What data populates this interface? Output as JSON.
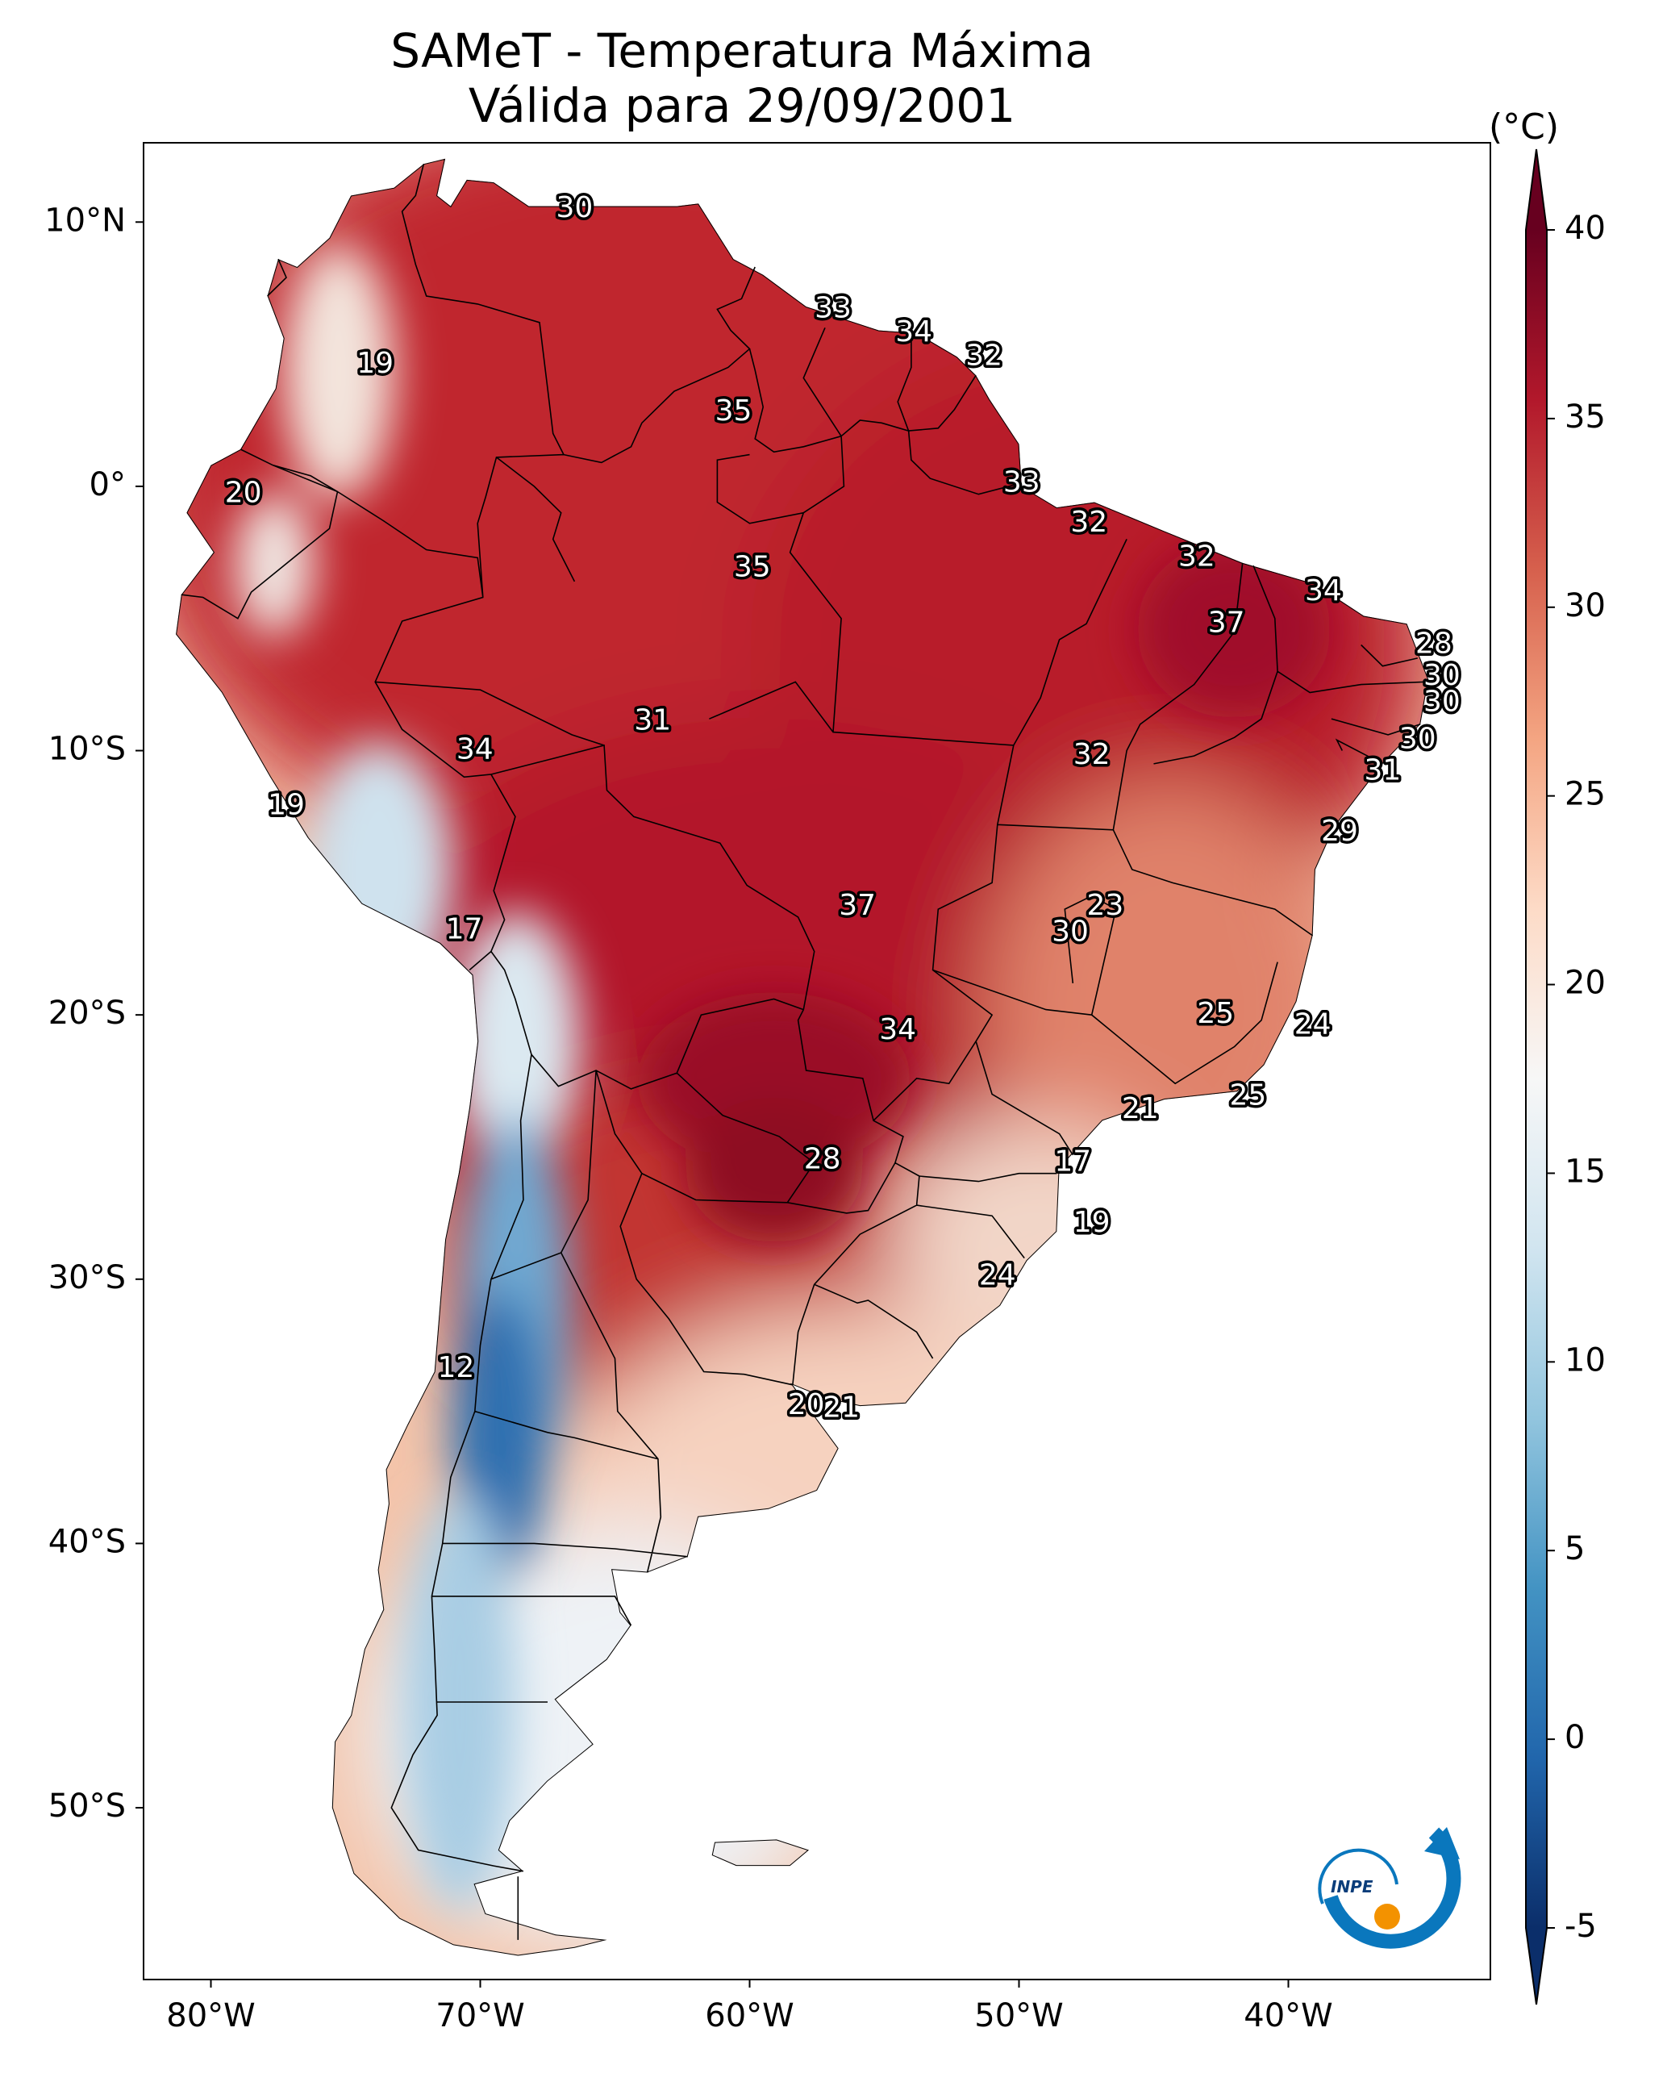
{
  "title": {
    "line1": "SAMeT - Temperatura Máxima",
    "line2": "Válida para 29/09/2001"
  },
  "map": {
    "lon_range": [
      -82.5,
      -32.5
    ],
    "lat_range": [
      -56.5,
      13.0
    ],
    "lon_ticks": [
      {
        "value": -80,
        "label": "80°W"
      },
      {
        "value": -70,
        "label": "70°W"
      },
      {
        "value": -60,
        "label": "60°W"
      },
      {
        "value": -50,
        "label": "50°W"
      },
      {
        "value": -40,
        "label": "40°W"
      }
    ],
    "lat_ticks": [
      {
        "value": 10,
        "label": "10°N"
      },
      {
        "value": 0,
        "label": "0°"
      },
      {
        "value": -10,
        "label": "10°S"
      },
      {
        "value": -20,
        "label": "20°S"
      },
      {
        "value": -30,
        "label": "30°S"
      },
      {
        "value": -40,
        "label": "40°S"
      },
      {
        "value": -50,
        "label": "50°S"
      }
    ]
  },
  "colorbar": {
    "unit": "(°C)",
    "range": [
      -5,
      40
    ],
    "ticks": [
      "40",
      "35",
      "30",
      "25",
      "20",
      "15",
      "10",
      "5",
      "0",
      "-5"
    ],
    "tick_values": [
      40,
      35,
      30,
      25,
      20,
      15,
      10,
      5,
      0,
      -5
    ],
    "colors": [
      "#0b2e6a",
      "#2166ac",
      "#4393c3",
      "#92c5de",
      "#d1e5f0",
      "#f7f7f7",
      "#fddbc7",
      "#f4a582",
      "#d6604d",
      "#b2182b",
      "#67001f"
    ]
  },
  "contour_labels": [
    {
      "text": "30",
      "lon": -66.5,
      "lat": 10.5
    },
    {
      "text": "19",
      "lon": -73.9,
      "lat": 4.6
    },
    {
      "text": "33",
      "lon": -56.9,
      "lat": 6.7
    },
    {
      "text": "34",
      "lon": -53.9,
      "lat": 5.8
    },
    {
      "text": "32",
      "lon": -51.3,
      "lat": 4.9
    },
    {
      "text": "35",
      "lon": -60.6,
      "lat": 2.8
    },
    {
      "text": "20",
      "lon": -78.8,
      "lat": -0.3
    },
    {
      "text": "33",
      "lon": -49.9,
      "lat": 0.1
    },
    {
      "text": "32",
      "lon": -47.4,
      "lat": -1.4
    },
    {
      "text": "35",
      "lon": -59.9,
      "lat": -3.1
    },
    {
      "text": "32",
      "lon": -43.4,
      "lat": -2.7
    },
    {
      "text": "34",
      "lon": -38.7,
      "lat": -4.0
    },
    {
      "text": "37",
      "lon": -42.3,
      "lat": -5.2
    },
    {
      "text": "28",
      "lon": -34.6,
      "lat": -6.0
    },
    {
      "text": "30",
      "lon": -34.3,
      "lat": -7.2
    },
    {
      "text": "30",
      "lon": -34.3,
      "lat": -8.2
    },
    {
      "text": "31",
      "lon": -63.6,
      "lat": -8.9
    },
    {
      "text": "34",
      "lon": -70.2,
      "lat": -10.0
    },
    {
      "text": "32",
      "lon": -47.3,
      "lat": -10.2
    },
    {
      "text": "30",
      "lon": -35.2,
      "lat": -9.6
    },
    {
      "text": "31",
      "lon": -36.5,
      "lat": -10.8
    },
    {
      "text": "19",
      "lon": -77.2,
      "lat": -12.1
    },
    {
      "text": "29",
      "lon": -38.1,
      "lat": -13.1
    },
    {
      "text": "37",
      "lon": -56.0,
      "lat": -15.9
    },
    {
      "text": "23",
      "lon": -46.8,
      "lat": -15.9
    },
    {
      "text": "17",
      "lon": -70.6,
      "lat": -16.8
    },
    {
      "text": "30",
      "lon": -48.1,
      "lat": -16.9
    },
    {
      "text": "25",
      "lon": -42.7,
      "lat": -20.0
    },
    {
      "text": "24",
      "lon": -39.1,
      "lat": -20.4
    },
    {
      "text": "34",
      "lon": -54.5,
      "lat": -20.6
    },
    {
      "text": "25",
      "lon": -41.5,
      "lat": -23.1
    },
    {
      "text": "21",
      "lon": -45.5,
      "lat": -23.6
    },
    {
      "text": "28",
      "lon": -57.3,
      "lat": -25.5
    },
    {
      "text": "17",
      "lon": -48.0,
      "lat": -25.6
    },
    {
      "text": "19",
      "lon": -47.3,
      "lat": -27.9
    },
    {
      "text": "24",
      "lon": -50.8,
      "lat": -29.9
    },
    {
      "text": "12",
      "lon": -70.9,
      "lat": -33.4
    },
    {
      "text": "20",
      "lon": -57.9,
      "lat": -34.8
    },
    {
      "text": "21",
      "lon": -56.6,
      "lat": -34.9
    }
  ],
  "logo": {
    "text": "INPE"
  }
}
